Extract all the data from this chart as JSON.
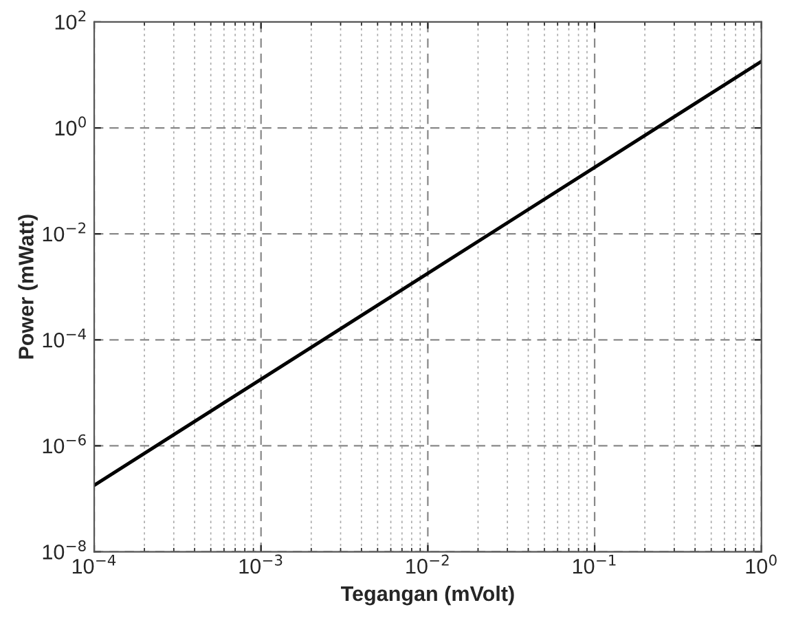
{
  "chart_data": {
    "type": "line",
    "xlabel": "Tegangan (mVolt)",
    "ylabel": "Power (mWatt)",
    "x": [
      0.0001,
      1
    ],
    "series": [
      {
        "color": "#000000",
        "values": [
          1.8e-07,
          18
        ]
      }
    ],
    "log": "xy",
    "grid": true,
    "line_style": "solid",
    "xlim": [
      0.0001,
      1
    ],
    "ylim": [
      1e-08,
      100
    ],
    "xticks": [
      {
        "value": 0.0001,
        "label": "10$^{−4}$"
      },
      {
        "value": 0.001,
        "label": "10$^{−3}$"
      },
      {
        "value": 0.01,
        "label": "10$^{−2}$"
      },
      {
        "value": 0.1,
        "label": "10$^{−1}$"
      },
      {
        "value": 1,
        "label": "10$^{0}$"
      }
    ],
    "yticks": [
      {
        "value": 1e-08,
        "label": "10$^{−8}$"
      },
      {
        "value": 1e-06,
        "label": "10$^{−6}$"
      },
      {
        "value": 0.0001,
        "label": "10$^{−4}$"
      },
      {
        "value": 0.01,
        "label": "10$^{−2}$"
      },
      {
        "value": 1,
        "label": "10$^{0}$"
      },
      {
        "value": 100,
        "label": "10$^{2}$"
      }
    ]
  }
}
